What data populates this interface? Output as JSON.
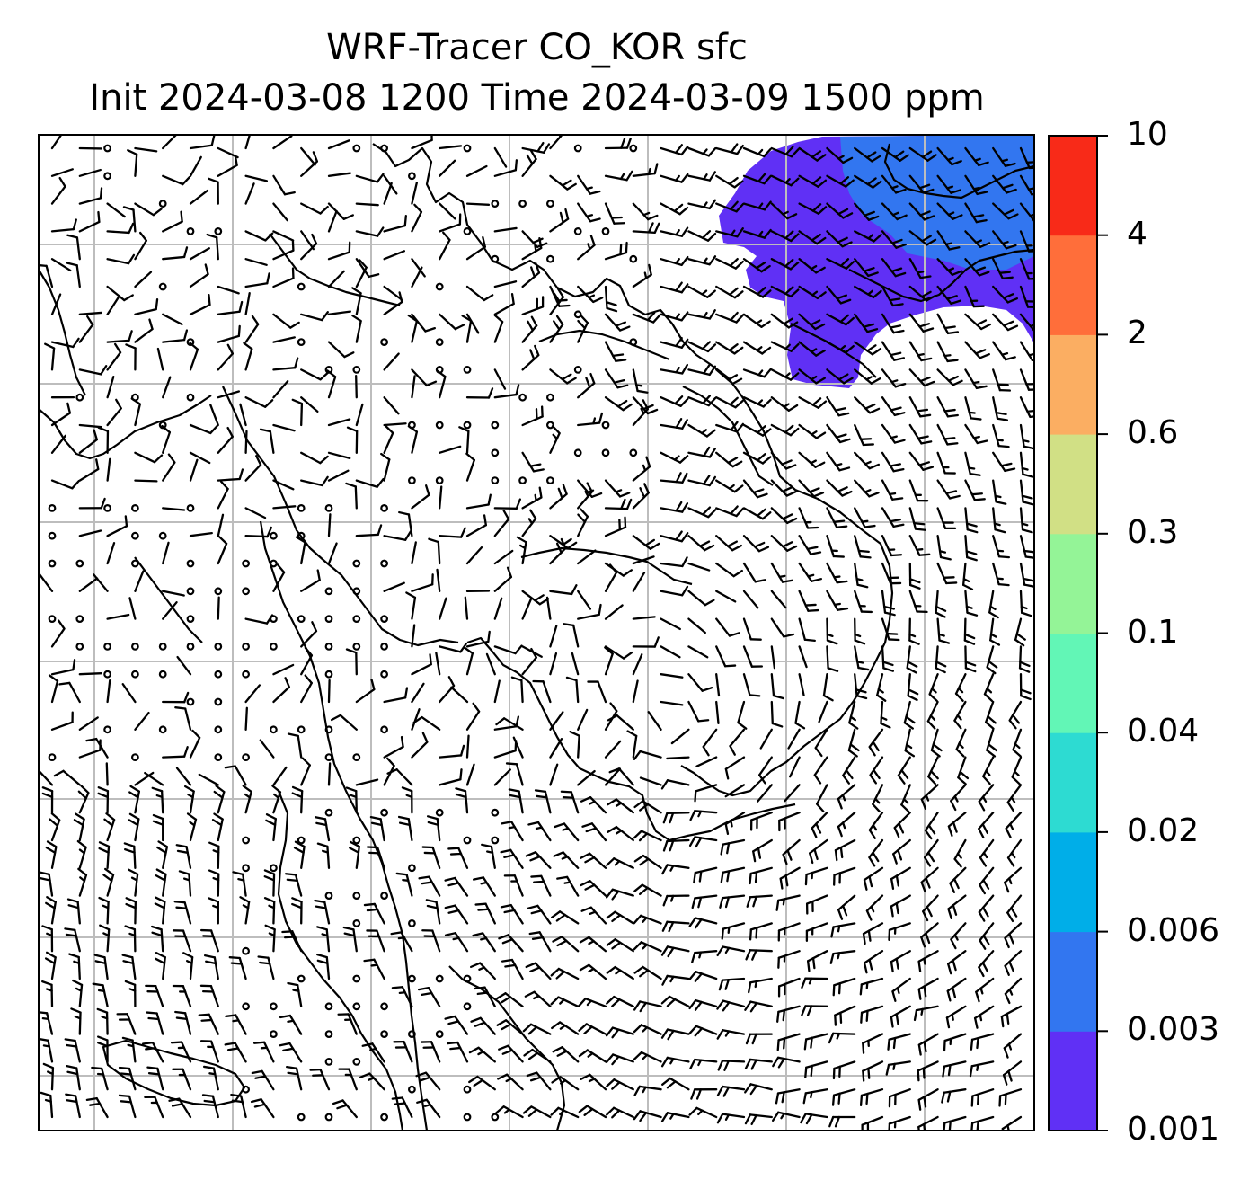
{
  "title": {
    "line1": "WRF-Tracer CO_KOR sfc",
    "line2": "Init 2024-03-08 1200 Time 2024-03-09 1500 ppm"
  },
  "colorbar": {
    "levels": [
      "0.001",
      "0.003",
      "0.006",
      "0.02",
      "0.04",
      "0.1",
      "0.3",
      "0.6",
      "2",
      "4",
      "10"
    ],
    "colors": [
      "#6030f5",
      "#3276f0",
      "#00aee8",
      "#2ddbd2",
      "#62f6b6",
      "#94f497",
      "#d1e085",
      "#fbae62",
      "#ff6e3a",
      "#f82a18"
    ]
  },
  "map": {
    "plume_color_low": "#6030f5",
    "plume_color_high": "#3276f0",
    "grid_color": "#bdbdbd",
    "wind_barb_color": "#000000"
  }
}
